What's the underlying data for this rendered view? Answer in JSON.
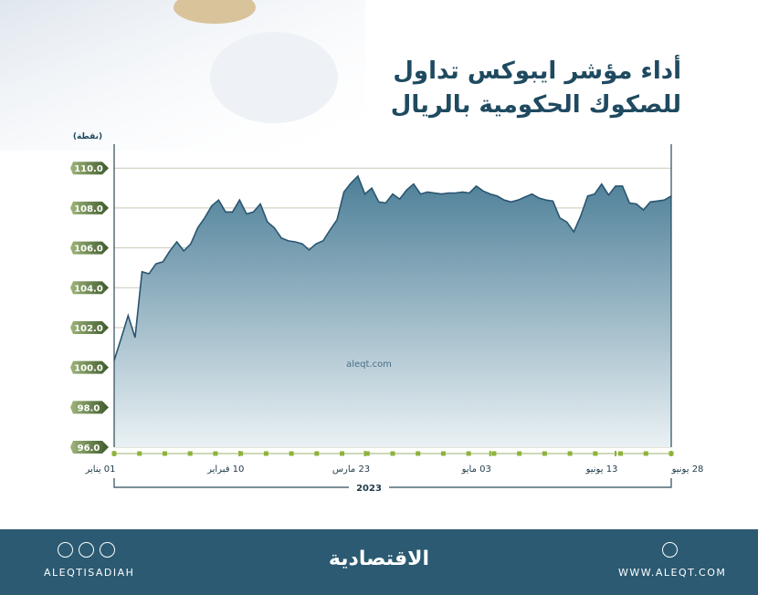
{
  "chart_data": {
    "type": "area",
    "title": "أداء مؤشر ايبوكس تداول للصكوك الحكومية بالريال",
    "y_label": "(نقطة)",
    "watermark": "aleqt.com",
    "year_label": "2023",
    "line_color": "#2a5570",
    "color": "#4d7f98",
    "ylim": [
      96,
      111.2
    ],
    "yticks": [
      {
        "value": 96,
        "label": "96.0"
      },
      {
        "value": 98,
        "label": "98.0"
      },
      {
        "value": 100,
        "label": "100.0"
      },
      {
        "value": 102,
        "label": "102.0"
      },
      {
        "value": 104,
        "label": "104.0"
      },
      {
        "value": 106,
        "label": "106.0"
      },
      {
        "value": 108,
        "label": "108.0"
      },
      {
        "value": 110,
        "label": "110.0"
      }
    ],
    "xlim": [
      0,
      80
    ],
    "xticks": [
      {
        "value": 0,
        "label": "01 يناير"
      },
      {
        "value": 18,
        "label": "10 فبراير"
      },
      {
        "value": 36,
        "label": "23 مارس"
      },
      {
        "value": 54,
        "label": "03 مايو"
      },
      {
        "value": 72,
        "label": "13 يونيو"
      },
      {
        "value": 80,
        "label": "28 يونيو"
      }
    ],
    "grid": true,
    "values": [
      100.35,
      101.45,
      102.6,
      101.5,
      104.8,
      104.7,
      105.2,
      105.3,
      105.85,
      106.3,
      105.85,
      106.2,
      107.0,
      107.5,
      108.1,
      108.4,
      107.8,
      107.8,
      108.4,
      107.7,
      107.8,
      108.2,
      107.3,
      107.0,
      106.5,
      106.35,
      106.3,
      106.2,
      105.9,
      106.2,
      106.35,
      106.9,
      107.4,
      108.8,
      109.25,
      109.6,
      108.7,
      109.0,
      108.3,
      108.25,
      108.7,
      108.45,
      108.9,
      109.2,
      108.7,
      108.8,
      108.75,
      108.7,
      108.75,
      108.75,
      108.8,
      108.75,
      109.1,
      108.85,
      108.7,
      108.6,
      108.4,
      108.3,
      108.4,
      108.55,
      108.7,
      108.5,
      108.4,
      108.35,
      107.5,
      107.3,
      106.8,
      107.6,
      108.6,
      108.7,
      109.2,
      108.65,
      109.1,
      109.1,
      108.25,
      108.2,
      107.9,
      108.3,
      108.35,
      108.4,
      108.6
    ]
  },
  "footer": {
    "social": "ALEQTISADIAH",
    "logo": "الاقتصادية",
    "website": "WWW.ALEQT.COM"
  }
}
